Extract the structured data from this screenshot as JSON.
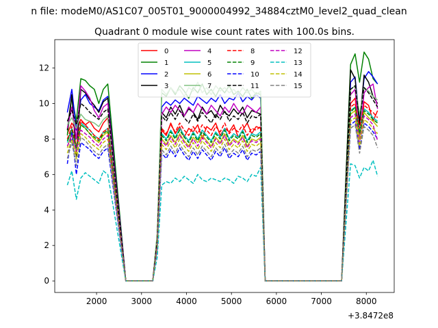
{
  "chart_data": {
    "type": "line",
    "suptitle": "n file: modeM0/AS1C07_005T01_9000004992_34884cztM0_level2_quad_clean",
    "title": "Quadrant 0 module wise count rates with 100.0s bins.",
    "xlabel": "",
    "ylabel": "",
    "x_offset_label": "+3.8472e8",
    "xlim": [
      1070,
      8620
    ],
    "ylim": [
      -0.65,
      13.6
    ],
    "xticks": [
      2000,
      3000,
      4000,
      5000,
      6000,
      7000,
      8000
    ],
    "yticks": [
      0,
      2,
      4,
      6,
      8,
      10,
      12
    ],
    "xtick_labels": [
      "2000",
      "3000",
      "4000",
      "5000",
      "6000",
      "7000",
      "8000"
    ],
    "ytick_labels": [
      "0",
      "2",
      "4",
      "6",
      "8",
      "10",
      "12"
    ],
    "legend_position": "upper center",
    "legend_ncol": 4,
    "x": [
      1350,
      1450,
      1550,
      1650,
      1750,
      1850,
      1950,
      2050,
      2150,
      2250,
      2350,
      2450,
      2550,
      2650,
      2750,
      2850,
      2950,
      3050,
      3150,
      3250,
      3350,
      3450,
      3550,
      3650,
      3750,
      3850,
      3950,
      4050,
      4150,
      4250,
      4350,
      4450,
      4550,
      4650,
      4750,
      4850,
      4950,
      5050,
      5150,
      5250,
      5350,
      5450,
      5550,
      5650,
      5750,
      5850,
      5950,
      6050,
      6150,
      6250,
      6350,
      6450,
      6550,
      6650,
      6750,
      6850,
      6950,
      7050,
      7150,
      7250,
      7350,
      7450,
      7550,
      7650,
      7750,
      7850,
      7950,
      8050,
      8150,
      8250
    ],
    "series": [
      {
        "name": "0",
        "color": "#ff0000",
        "dash": "solid",
        "active": [
          8.3,
          8.9,
          8.5,
          9.1,
          8.8,
          9.0,
          8.6,
          8.4,
          8.9,
          9.2
        ],
        "active2": [
          8.5,
          8.2,
          8.9,
          8.3,
          8.7,
          8.1,
          8.6,
          8.4,
          8.8,
          8.0,
          8.7,
          8.5,
          8.9,
          8.2,
          8.6,
          8.4,
          8.8,
          8.1,
          8.5,
          8.9,
          8.3,
          8.7,
          8.6
        ],
        "active3": [
          10.0,
          10.3,
          8.2,
          10.1,
          9.9,
          9.0,
          9.6
        ]
      },
      {
        "name": "1",
        "color": "#008000",
        "dash": "solid",
        "active": [
          8.2,
          10.4,
          9.0,
          11.4,
          11.3,
          11.0,
          10.8,
          10.0,
          10.8,
          11.1
        ],
        "active2": [
          10.6,
          10.4,
          10.9,
          10.5,
          11.0,
          10.7,
          10.3,
          10.9,
          10.6,
          11.1,
          10.5,
          10.8,
          10.4,
          10.9,
          10.6,
          11.0,
          10.5,
          10.7,
          10.4,
          10.8,
          10.3,
          10.6,
          10.5
        ],
        "active3": [
          12.2,
          12.8,
          11.2,
          12.9,
          12.5,
          11.4,
          11.1
        ]
      },
      {
        "name": "2",
        "color": "#0000ff",
        "dash": "solid",
        "active": [
          9.5,
          10.8,
          8.5,
          10.2,
          10.5,
          10.0,
          9.8,
          9.6,
          10.2,
          10.4
        ],
        "active2": [
          9.8,
          10.1,
          9.9,
          10.2,
          10.0,
          10.3,
          10.1,
          9.9,
          10.4,
          10.2,
          10.0,
          10.3,
          10.1,
          10.5,
          10.0,
          10.3,
          10.2,
          10.6,
          10.1,
          10.4,
          10.2,
          10.5,
          10.3
        ],
        "active3": [
          11.2,
          11.5,
          9.0,
          11.4,
          11.8,
          11.5,
          11.1
        ]
      },
      {
        "name": "3",
        "color": "#000000",
        "dash": "solid",
        "active": [
          8.5,
          10.5,
          7.0,
          10.8,
          10.6,
          10.2,
          9.9,
          9.5,
          10.1,
          10.3
        ],
        "active2": [
          9.5,
          9.2,
          9.8,
          9.4,
          9.9,
          9.3,
          9.7,
          9.5,
          9.1,
          9.8,
          9.4,
          9.6,
          9.2,
          9.9,
          9.5,
          9.3,
          9.7,
          9.4,
          9.8,
          9.2,
          9.6,
          9.5,
          9.4
        ],
        "active3": [
          11.9,
          11.4,
          8.8,
          11.6,
          11.2,
          10.4,
          10.0
        ]
      },
      {
        "name": "4",
        "color": "#c000c0",
        "dash": "solid",
        "active": [
          8.6,
          9.8,
          8.0,
          11.0,
          10.7,
          10.3,
          9.6,
          9.2,
          9.8,
          10.0
        ],
        "active2": [
          9.4,
          9.8,
          9.5,
          9.9,
          9.6,
          9.3,
          9.8,
          9.5,
          10.0,
          9.7,
          9.4,
          9.9,
          9.6,
          9.3,
          9.8,
          9.5,
          10.0,
          9.6,
          9.4,
          9.9,
          9.7,
          9.5,
          9.8
        ],
        "active3": [
          10.5,
          10.8,
          8.0,
          10.6,
          10.9,
          11.1,
          9.7
        ]
      },
      {
        "name": "5",
        "color": "#00bfbf",
        "dash": "solid",
        "active": [
          7.8,
          8.6,
          7.4,
          8.9,
          8.7,
          8.5,
          8.2,
          8.0,
          8.4,
          8.6
        ],
        "active2": [
          8.3,
          8.0,
          8.5,
          8.1,
          8.6,
          8.2,
          7.9,
          8.4,
          8.0,
          8.5,
          8.2,
          7.9,
          8.4,
          8.1,
          8.6,
          8.0,
          8.3,
          8.1,
          8.5,
          7.9,
          8.3,
          8.2,
          8.4
        ],
        "active3": [
          9.6,
          9.8,
          8.4,
          9.7,
          9.5,
          9.2,
          9.0
        ]
      },
      {
        "name": "6",
        "color": "#bfbf00",
        "dash": "solid",
        "active": [
          7.5,
          8.4,
          7.2,
          8.8,
          8.6,
          8.3,
          8.0,
          7.8,
          8.2,
          8.4
        ],
        "active2": [
          8.0,
          7.7,
          8.2,
          7.8,
          8.3,
          7.9,
          7.6,
          8.1,
          7.8,
          8.2,
          7.9,
          7.6,
          8.1,
          7.8,
          8.3,
          7.7,
          8.0,
          7.8,
          8.2,
          7.6,
          8.0,
          7.9,
          8.1
        ],
        "active3": [
          9.4,
          9.6,
          8.0,
          9.5,
          9.2,
          9.0,
          8.7
        ]
      },
      {
        "name": "7",
        "color": "#80c080",
        "dash": "solid",
        "active": [
          8.8,
          9.2,
          8.6,
          9.4,
          9.1,
          9.0,
          8.9,
          8.7,
          9.1,
          9.3
        ],
        "active2": [
          10.8,
          10.5,
          10.9,
          10.6,
          10.8,
          10.4,
          10.9,
          10.7,
          11.2,
          10.6,
          10.9,
          10.5,
          11.0,
          10.7,
          10.9,
          10.6,
          10.8,
          10.5,
          10.9,
          10.6,
          10.8,
          10.5,
          10.7
        ],
        "active3": [
          10.8,
          11.0,
          9.4,
          10.9,
          10.7,
          10.4,
          10.2
        ]
      },
      {
        "name": "8",
        "color": "#ff0000",
        "dash": "dashed",
        "active": [
          8.0,
          8.7,
          7.6,
          9.0,
          8.8,
          8.5,
          8.2,
          8.0,
          8.4,
          8.6
        ],
        "active2": [
          8.6,
          8.3,
          8.8,
          8.4,
          8.9,
          8.5,
          8.2,
          8.7,
          8.3,
          8.8,
          8.5,
          8.2,
          8.7,
          8.4,
          8.9,
          8.3,
          8.6,
          8.4,
          8.8,
          8.2,
          8.6,
          8.5,
          8.7
        ],
        "active3": [
          9.8,
          10.0,
          8.6,
          9.9,
          9.7,
          9.5,
          9.2
        ]
      },
      {
        "name": "9",
        "color": "#008000",
        "dash": "dashed",
        "active": [
          7.9,
          8.5,
          7.5,
          8.8,
          8.6,
          8.3,
          8.1,
          7.9,
          8.3,
          8.5
        ],
        "active2": [
          8.2,
          7.9,
          8.4,
          8.0,
          8.5,
          8.1,
          7.8,
          8.3,
          7.9,
          8.4,
          8.1,
          7.8,
          8.3,
          8.0,
          8.5,
          7.9,
          8.2,
          8.0,
          8.4,
          7.8,
          8.2,
          8.1,
          8.3
        ],
        "active3": [
          9.5,
          9.8,
          8.3,
          9.6,
          9.4,
          9.1,
          8.9
        ]
      },
      {
        "name": "10",
        "color": "#0000ff",
        "dash": "dashed",
        "active": [
          6.6,
          8.4,
          6.0,
          7.8,
          7.6,
          7.4,
          7.1,
          6.9,
          7.3,
          7.5
        ],
        "active2": [
          7.2,
          6.9,
          7.4,
          7.0,
          7.5,
          7.1,
          6.8,
          7.3,
          6.9,
          7.4,
          7.1,
          6.8,
          7.3,
          7.0,
          7.5,
          6.9,
          7.2,
          7.0,
          7.4,
          6.8,
          7.2,
          7.1,
          7.3
        ],
        "active3": [
          8.8,
          9.0,
          7.4,
          8.9,
          8.7,
          8.4,
          8.0
        ]
      },
      {
        "name": "11",
        "color": "#000000",
        "dash": "dashed",
        "active": [
          9.0,
          9.6,
          8.8,
          10.0,
          9.8,
          9.5,
          9.3,
          9.1,
          9.5,
          9.7
        ],
        "active2": [
          9.3,
          9.0,
          9.5,
          9.1,
          9.6,
          9.2,
          8.9,
          9.4,
          9.0,
          9.5,
          9.2,
          8.9,
          9.4,
          9.1,
          9.6,
          9.0,
          9.3,
          9.1,
          9.5,
          8.9,
          9.3,
          9.2,
          9.4
        ],
        "active3": [
          10.8,
          11.0,
          9.0,
          10.9,
          10.6,
          10.2,
          9.8
        ]
      },
      {
        "name": "12",
        "color": "#c000c0",
        "dash": "dashed",
        "active": [
          7.6,
          8.2,
          7.3,
          8.5,
          8.3,
          8.1,
          7.8,
          7.6,
          8.0,
          8.2
        ],
        "active2": [
          7.9,
          7.6,
          8.1,
          7.7,
          8.2,
          7.8,
          7.5,
          8.0,
          7.6,
          8.1,
          7.8,
          7.5,
          8.0,
          7.7,
          8.2,
          7.6,
          7.9,
          7.7,
          8.1,
          7.5,
          7.9,
          7.8,
          8.0
        ],
        "active3": [
          9.2,
          9.4,
          7.8,
          9.3,
          9.1,
          8.8,
          7.9
        ]
      },
      {
        "name": "13",
        "color": "#00bfbf",
        "dash": "dashed",
        "active": [
          5.4,
          6.2,
          4.6,
          5.8,
          6.1,
          5.9,
          5.7,
          5.5,
          6.2,
          6.0
        ],
        "active2": [
          5.4,
          5.6,
          5.5,
          5.8,
          5.6,
          5.9,
          5.7,
          5.5,
          6.0,
          5.7,
          5.6,
          5.8,
          5.7,
          5.6,
          5.8,
          5.7,
          5.5,
          5.9,
          5.8,
          5.6,
          6.0,
          5.9,
          6.4
        ],
        "active3": [
          6.6,
          6.5,
          5.8,
          6.4,
          6.2,
          6.8,
          5.9
        ]
      },
      {
        "name": "14",
        "color": "#bfbf00",
        "dash": "dashed",
        "active": [
          7.2,
          8.0,
          6.9,
          8.3,
          8.1,
          7.8,
          7.6,
          7.4,
          7.8,
          8.0
        ],
        "active2": [
          7.7,
          7.4,
          7.9,
          7.5,
          8.0,
          7.6,
          7.3,
          7.8,
          7.4,
          7.9,
          7.6,
          7.3,
          7.8,
          7.5,
          8.0,
          7.4,
          7.7,
          7.5,
          7.9,
          7.3,
          7.7,
          7.6,
          7.8
        ],
        "active3": [
          9.0,
          9.2,
          7.6,
          9.1,
          8.9,
          8.6,
          8.3
        ]
      },
      {
        "name": "15",
        "color": "#808080",
        "dash": "dashed",
        "active": [
          6.9,
          7.8,
          6.5,
          8.1,
          7.9,
          7.6,
          7.3,
          7.1,
          7.5,
          7.7
        ],
        "active2": [
          7.4,
          7.1,
          7.6,
          7.2,
          7.7,
          7.3,
          7.0,
          7.5,
          7.1,
          7.6,
          7.3,
          7.0,
          7.5,
          7.2,
          7.7,
          7.1,
          7.4,
          7.2,
          7.6,
          7.0,
          7.4,
          7.3,
          7.5
        ],
        "active3": [
          8.6,
          8.8,
          7.2,
          8.7,
          8.5,
          8.2,
          7.5
        ]
      }
    ],
    "segments": {
      "active_start": 1350,
      "active_step": 100,
      "drop": [
        2550,
        2650
      ],
      "zero_1": [
        2650,
        3250
      ],
      "rise": [
        3250,
        3350,
        3450
      ],
      "active2_start": 3450,
      "drop2": [
        5650,
        5750
      ],
      "zero_2": [
        5750,
        7450
      ],
      "rise2": [
        7450,
        7550,
        7650
      ],
      "active3_start": 7650
    }
  }
}
